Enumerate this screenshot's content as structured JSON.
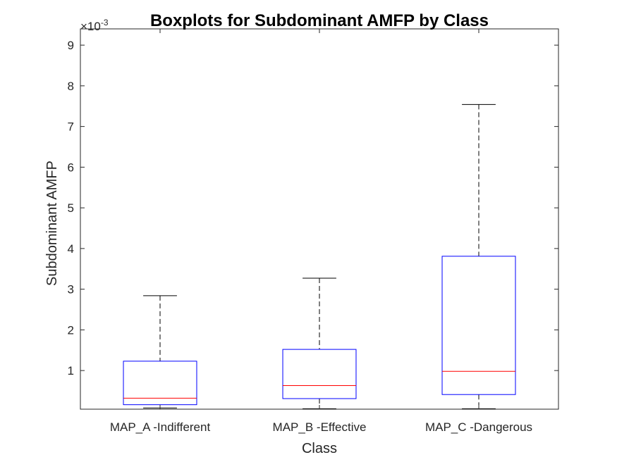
{
  "chart_data": {
    "type": "boxplot",
    "title": "Boxplots for Subdominant AMFP by Class",
    "xlabel": "Class",
    "ylabel": "Subdominant AMFP",
    "exponent_label": "×10",
    "exponent_power": "-3",
    "ylim": [
      0.05,
      9.4
    ],
    "yticks": [
      1,
      2,
      3,
      4,
      5,
      6,
      7,
      8,
      9
    ],
    "ytick_labels": [
      "1",
      "2",
      "3",
      "4",
      "5",
      "6",
      "7",
      "8",
      "9"
    ],
    "grid": false,
    "categories": [
      "MAP_A -Indifferent",
      "MAP_B -Effective",
      "MAP_C -Dangerous"
    ],
    "boxes": [
      {
        "category": "MAP_A -Indifferent",
        "whisker_low": 0.08,
        "q1": 0.16,
        "median": 0.32,
        "q3": 1.23,
        "whisker_high": 2.84
      },
      {
        "category": "MAP_B -Effective",
        "whisker_low": 0.06,
        "q1": 0.31,
        "median": 0.63,
        "q3": 1.52,
        "whisker_high": 3.27
      },
      {
        "category": "MAP_C -Dangerous",
        "whisker_low": 0.06,
        "q1": 0.41,
        "median": 0.98,
        "q3": 3.81,
        "whisker_high": 7.54
      }
    ],
    "colors": {
      "box": "#0000ff",
      "median": "#ff0000",
      "whisker": "#000000",
      "axis": "#262626"
    }
  }
}
